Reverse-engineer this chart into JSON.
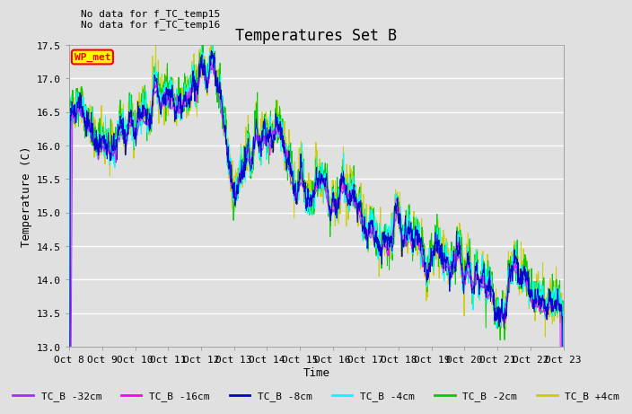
{
  "title": "Temperatures Set B",
  "ylabel": "Temperature (C)",
  "xlabel": "Time",
  "ylim": [
    13.0,
    17.5
  ],
  "xlim": [
    0,
    360
  ],
  "annotations": [
    "No data for f_TC_temp15",
    "No data for f_TC_temp16"
  ],
  "wp_met_label": "WP_met",
  "x_tick_labels": [
    "Oct 8",
    "Oct 9",
    "Oct 10",
    "Oct 11",
    "Oct 12",
    "Oct 13",
    "Oct 14",
    "Oct 15",
    "Oct 16",
    "Oct 17",
    "Oct 18",
    "Oct 19",
    "Oct 20",
    "Oct 21",
    "Oct 22",
    "Oct 23"
  ],
  "legend_entries": [
    "TC_B -32cm",
    "TC_B -16cm",
    "TC_B -8cm",
    "TC_B -4cm",
    "TC_B -2cm",
    "TC_B +4cm"
  ],
  "legend_colors": [
    "#9933FF",
    "#FF00FF",
    "#0000CC",
    "#00FFFF",
    "#00CC00",
    "#CCCC00"
  ],
  "background_color": "#E0E0E0",
  "grid_color": "#FFFFFF",
  "title_fontsize": 12,
  "tick_fontsize": 8,
  "label_fontsize": 9
}
